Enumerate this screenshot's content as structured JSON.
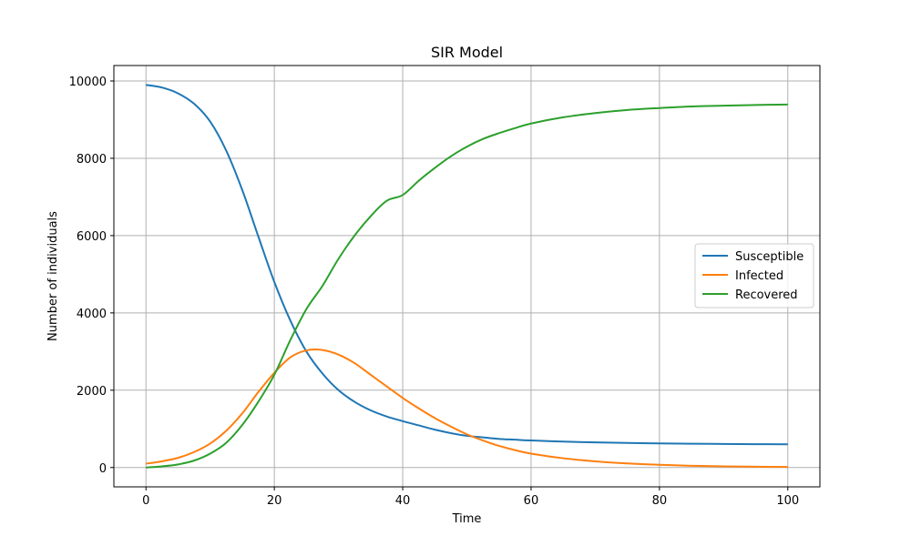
{
  "chart_data": {
    "type": "line",
    "title": "SIR Model",
    "xlabel": "Time",
    "ylabel": "Number of individuals",
    "xlim": [
      -5,
      105
    ],
    "ylim": [
      -500,
      10400
    ],
    "xticks": [
      0,
      20,
      40,
      60,
      80,
      100
    ],
    "yticks": [
      0,
      2000,
      4000,
      6000,
      8000,
      10000
    ],
    "grid": true,
    "legend_position": "center-right",
    "x": [
      0,
      2.5,
      5,
      7.5,
      10,
      12.5,
      15,
      17.5,
      20,
      22.5,
      25,
      27.5,
      30,
      32.5,
      35,
      37.5,
      40,
      42.5,
      45,
      47.5,
      50,
      52.5,
      55,
      57.5,
      60,
      65,
      70,
      75,
      80,
      85,
      90,
      95,
      100
    ],
    "series": [
      {
        "name": "Susceptible",
        "color": "#1f77b4",
        "values": [
          9900,
          9830,
          9680,
          9410,
          8950,
          8200,
          7180,
          5980,
          4800,
          3800,
          3000,
          2430,
          2000,
          1700,
          1480,
          1320,
          1200,
          1090,
          980,
          890,
          820,
          780,
          740,
          720,
          700,
          670,
          650,
          635,
          625,
          615,
          610,
          605,
          600
        ]
      },
      {
        "name": "Infected",
        "color": "#ff7f0e",
        "values": [
          100,
          160,
          250,
          400,
          620,
          950,
          1400,
          1950,
          2450,
          2850,
          3030,
          3040,
          2920,
          2700,
          2400,
          2100,
          1800,
          1530,
          1280,
          1060,
          860,
          700,
          560,
          450,
          360,
          240,
          160,
          105,
          70,
          45,
          30,
          20,
          15
        ]
      },
      {
        "name": "Recovered",
        "color": "#2ca02c",
        "values": [
          0,
          30,
          80,
          180,
          360,
          640,
          1100,
          1700,
          2400,
          3300,
          4100,
          4700,
          5400,
          6000,
          6500,
          6900,
          7050,
          7420,
          7750,
          8050,
          8300,
          8500,
          8650,
          8780,
          8900,
          9060,
          9170,
          9250,
          9300,
          9340,
          9360,
          9380,
          9390
        ]
      }
    ]
  }
}
